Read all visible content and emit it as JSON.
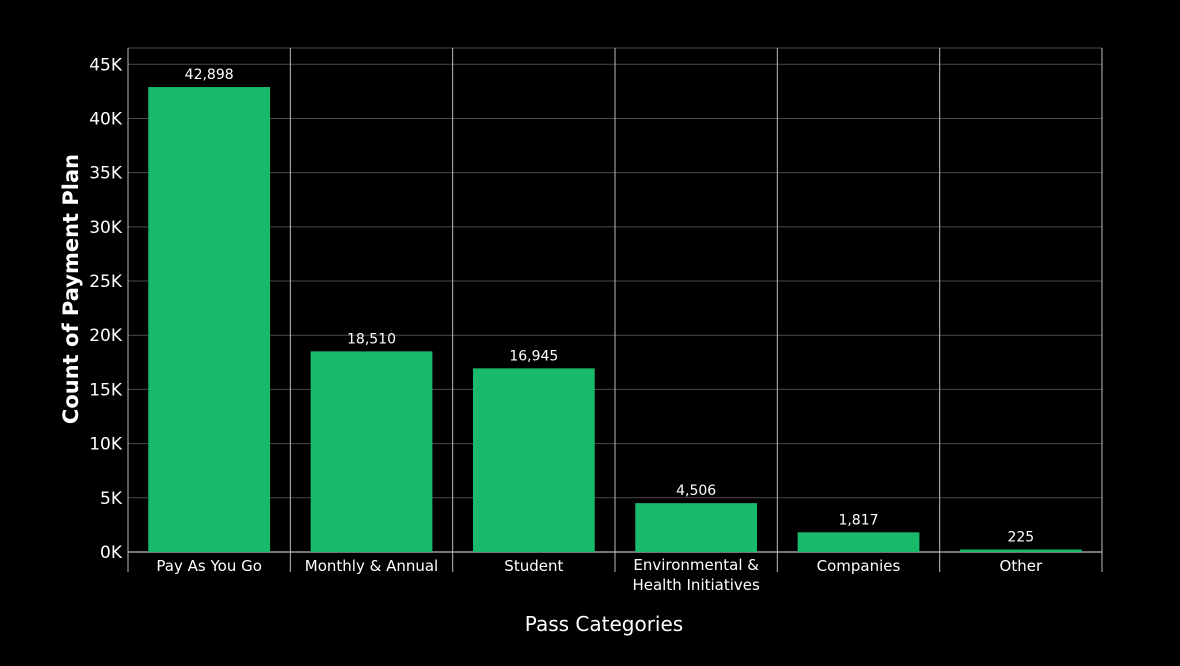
{
  "chart_data": {
    "type": "bar",
    "categories": [
      [
        "Pay As You Go"
      ],
      [
        "Monthly & Annual"
      ],
      [
        "Student"
      ],
      [
        "Environmental &",
        "Health Initiatives"
      ],
      [
        "Companies"
      ],
      [
        "Other"
      ]
    ],
    "values": [
      42898,
      18510,
      16945,
      4506,
      1817,
      225
    ],
    "value_labels": [
      "42,898",
      "18,510",
      "16,945",
      "4,506",
      "1,817",
      "225"
    ],
    "xlabel": "Pass Categories",
    "ylabel": "Count of Payment Plan",
    "ylim": [
      0,
      46500
    ],
    "yticks": [
      0,
      5000,
      10000,
      15000,
      20000,
      25000,
      30000,
      35000,
      40000,
      45000
    ],
    "ytick_labels": [
      "0K",
      "5K",
      "10K",
      "15K",
      "20K",
      "25K",
      "30K",
      "35K",
      "40K",
      "45K"
    ],
    "grid": true,
    "colors": {
      "bar": "#1aba6d",
      "background": "#000000",
      "grid": "#4a4a4a",
      "axis": "#bdbdbd",
      "text": "#ffffff"
    }
  }
}
